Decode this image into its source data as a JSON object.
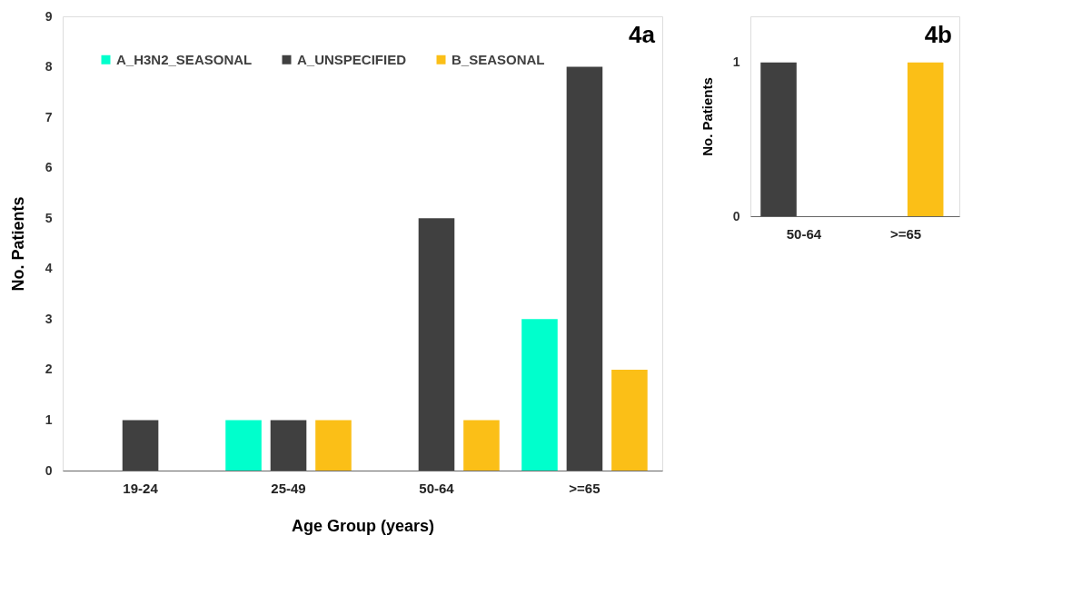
{
  "chart_data": [
    {
      "type": "bar",
      "xlabel": "Age Group (years)",
      "ylabel": "No. Patients",
      "categories": [
        "19-24",
        "25-49",
        "50-64",
        ">=65"
      ],
      "series": [
        {
          "name": "A_H3N2_SEASONAL",
          "color": "#00ffcc",
          "values": [
            null,
            1,
            null,
            3
          ]
        },
        {
          "name": "A_UNSPECIFIED",
          "color": "#404040",
          "values": [
            1,
            1,
            5,
            8
          ]
        },
        {
          "name": "B_SEASONAL",
          "color": "#fbbf17",
          "values": [
            null,
            1,
            1,
            2
          ]
        }
      ],
      "ylim": [
        0,
        9
      ],
      "yticks": [
        0,
        1,
        2,
        3,
        4,
        5,
        6,
        7,
        8,
        9
      ],
      "grid": false,
      "legend": "top left",
      "annotations": [
        "4a"
      ]
    },
    {
      "type": "bar",
      "ylabel": "No. Patients",
      "categories": [
        "50-64",
        ">=65"
      ],
      "series": [
        {
          "color": "#404040",
          "values": [
            1,
            null
          ]
        },
        {
          "color": "#fbbf17",
          "values": [
            null,
            1
          ]
        }
      ],
      "ylim": [
        0,
        1.3
      ],
      "yticks": [
        0,
        1
      ],
      "grid": false,
      "legend": false,
      "annotations": [
        "4b"
      ]
    }
  ]
}
